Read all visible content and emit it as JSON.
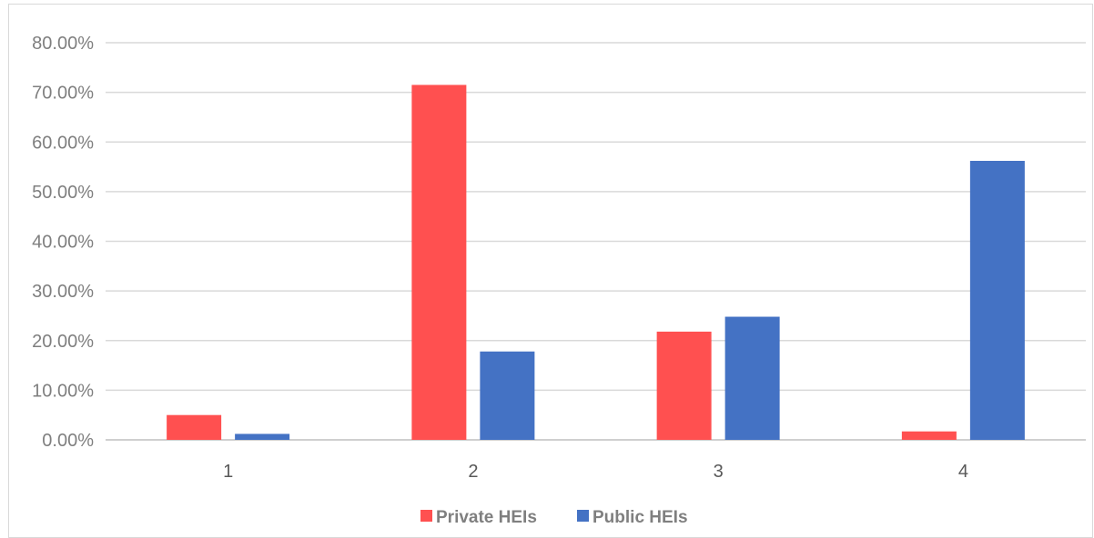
{
  "chart_data": {
    "type": "bar",
    "categories": [
      "1",
      "2",
      "3",
      "4"
    ],
    "series": [
      {
        "name": "Private HEIs",
        "color": "#ff5050",
        "values": [
          0.05,
          0.715,
          0.218,
          0.017
        ]
      },
      {
        "name": "Public HEIs",
        "color": "#4472c4",
        "values": [
          0.012,
          0.178,
          0.248,
          0.562
        ]
      }
    ],
    "yticks": [
      "0.00%",
      "10.00%",
      "20.00%",
      "30.00%",
      "40.00%",
      "50.00%",
      "60.00%",
      "70.00%",
      "80.00%"
    ],
    "ylim": [
      0,
      0.8
    ],
    "grid": true,
    "legend": "bottom-center",
    "title": "",
    "xlabel": "",
    "ylabel": ""
  }
}
